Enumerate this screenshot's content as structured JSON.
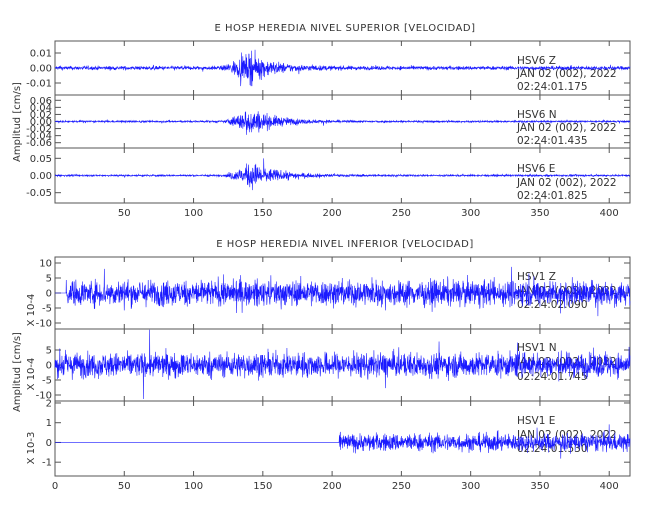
{
  "chart_data": [
    {
      "type": "line",
      "title": "E HOSP HEREDIA NIVEL SUPERIOR [VELOCIDAD]",
      "ylabel": "Amplitud [cm/s]",
      "xlabel": "",
      "xlim": [
        0,
        415
      ],
      "xticks": [
        50,
        100,
        150,
        200,
        250,
        300,
        350,
        400
      ],
      "trace_color": "#1a1aff",
      "panels": [
        {
          "channel": "HSV6    Z",
          "date": "JAN 02 (002), 2022",
          "time": "02:24:01.175",
          "ylim": [
            -0.018,
            0.018
          ],
          "yticks": [
            0.01,
            0.0,
            -0.01
          ],
          "ytick_labels": [
            "0.01",
            "0.00",
            "-0.01"
          ],
          "scale_label": "",
          "noise": 0.0012,
          "event_start": 120,
          "event_peak": 142,
          "event_peak_amp": 0.015,
          "decay": 16,
          "data_start": 0
        },
        {
          "channel": "HSV6    N",
          "date": "JAN 02 (002), 2022",
          "time": "02:24:01.435",
          "ylim": [
            -0.075,
            0.075
          ],
          "yticks": [
            0.06,
            0.04,
            0.02,
            0.0,
            -0.02,
            -0.04,
            -0.06
          ],
          "ytick_labels": [
            "0.06",
            "0.04",
            "0.02",
            "0.00",
            "-0.02",
            "-0.04",
            "-0.06"
          ],
          "scale_label": "",
          "noise": 0.0025,
          "event_start": 122,
          "event_peak": 142,
          "event_peak_amp": 0.06,
          "decay": 18,
          "data_start": 0
        },
        {
          "channel": "HSV6    E",
          "date": "JAN 02 (002), 2022",
          "time": "02:24:01.825",
          "ylim": [
            -0.08,
            0.08
          ],
          "yticks": [
            0.05,
            0.0,
            -0.05
          ],
          "ytick_labels": [
            "0.05",
            "0.00",
            "-0.05"
          ],
          "scale_label": "",
          "noise": 0.0025,
          "event_start": 122,
          "event_peak": 143,
          "event_peak_amp": 0.06,
          "decay": 18,
          "data_start": 0
        }
      ]
    },
    {
      "type": "line",
      "title": "E HOSP HEREDIA NIVEL INFERIOR [VELOCIDAD]",
      "ylabel": "Amplitud [cm/s]",
      "xlabel": "",
      "xlim": [
        0,
        415
      ],
      "xticks": [
        0,
        50,
        100,
        150,
        200,
        250,
        300,
        350,
        400
      ],
      "trace_color": "#1a1aff",
      "panels": [
        {
          "channel": "HSV1    Z",
          "date": "JAN 02 (002), 2022",
          "time": "02:24:02.090",
          "ylim": [
            -12,
            12
          ],
          "yticks": [
            10,
            5,
            0,
            -5,
            -10
          ],
          "ytick_labels": [
            "10",
            "5",
            "0",
            "-5",
            "-10"
          ],
          "scale_label": "X 10-4",
          "noise": 4.0,
          "event_start": 0,
          "event_peak": 0,
          "event_peak_amp": 0,
          "decay": 1,
          "data_start": 8
        },
        {
          "channel": "HSV1    N",
          "date": "JAN 02 (002), 2022",
          "time": "02:24:01.745",
          "ylim": [
            -12,
            12
          ],
          "yticks": [
            5,
            0,
            -5,
            -10
          ],
          "ytick_labels": [
            "5",
            "0",
            "-5",
            "-10"
          ],
          "scale_label": "X 10-4",
          "noise": 3.8,
          "event_start": 0,
          "event_peak": 0,
          "event_peak_amp": 0,
          "decay": 1,
          "data_start": 0
        },
        {
          "channel": "HSV1    E",
          "date": "JAN 02 (002), 2022",
          "time": "02:24:01.530",
          "ylim": [
            -1.7,
            2.1
          ],
          "yticks": [
            2,
            1,
            0,
            -1
          ],
          "ytick_labels": [
            "2",
            "1",
            "0",
            "-1"
          ],
          "scale_label": "X 10-3",
          "noise": 0.42,
          "event_start": 0,
          "event_peak": 0,
          "event_peak_amp": 0,
          "decay": 1,
          "data_start": 205
        }
      ]
    }
  ]
}
